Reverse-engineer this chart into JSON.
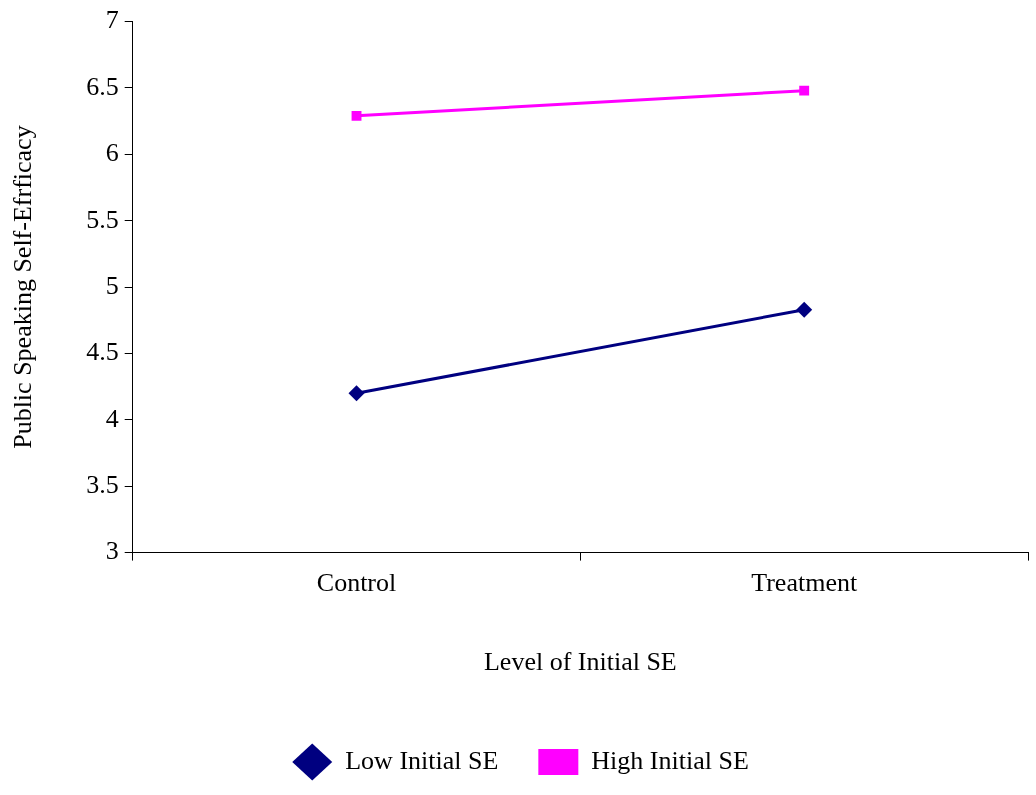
{
  "chart_data": {
    "type": "line",
    "xlabel": "Level of Initial SE",
    "ylabel": "Public Speaking Self-Efrficacy",
    "categories": [
      "Control",
      "Treatment"
    ],
    "series": [
      {
        "name": "Low Initial SE",
        "color": "#000080",
        "marker": "diamond",
        "values": [
          4.2,
          4.83
        ]
      },
      {
        "name": "High Initial SE",
        "color": "#ff00ff",
        "marker": "square",
        "values": [
          6.29,
          6.48
        ]
      }
    ],
    "ylim": [
      3,
      7
    ],
    "yticks": [
      3,
      3.5,
      4,
      4.5,
      5,
      5.5,
      6,
      6.5,
      7
    ],
    "grid": false,
    "legend": "bottom",
    "line_style": "solid"
  }
}
